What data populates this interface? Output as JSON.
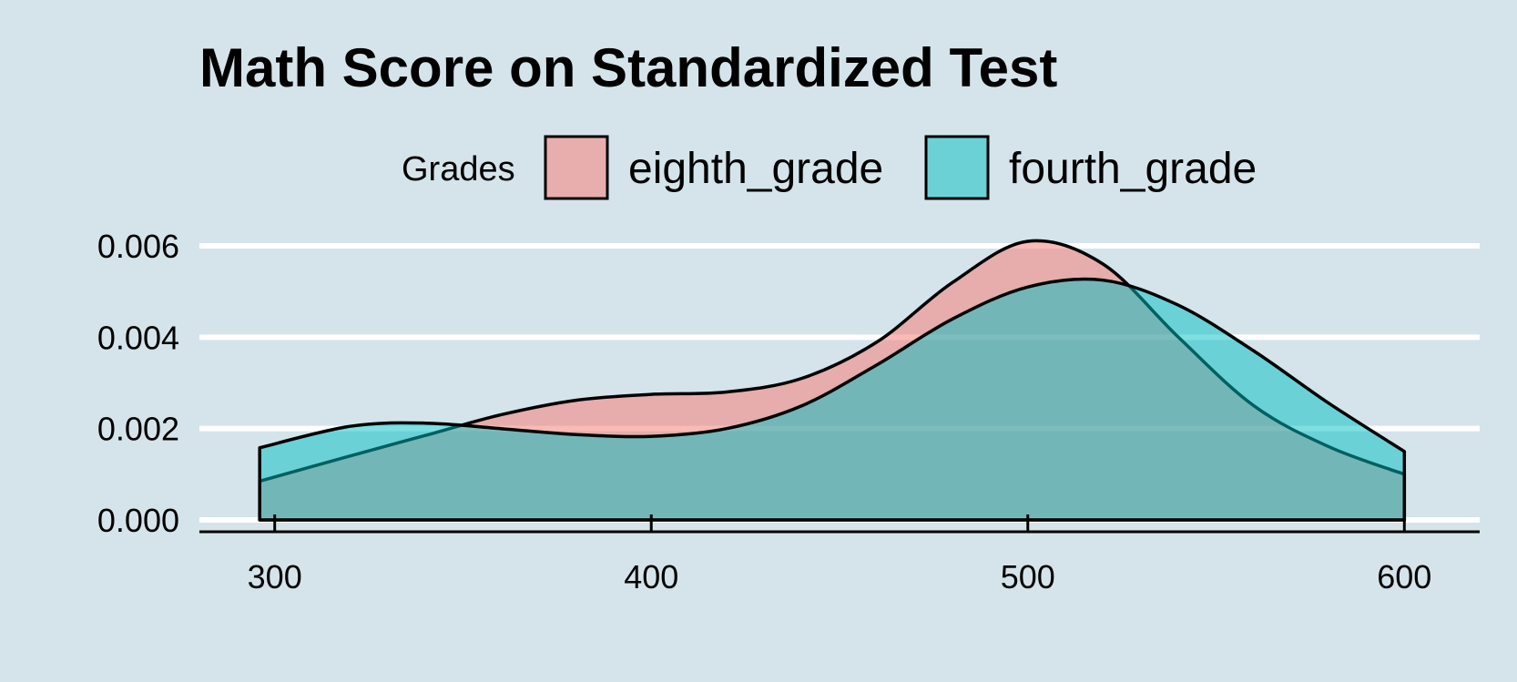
{
  "chart_data": {
    "type": "area",
    "title": "Math Score on Standardized Test",
    "xlabel": "",
    "ylabel": "",
    "legend": {
      "title": "Grades",
      "position": "top"
    },
    "xlim": [
      280,
      620
    ],
    "ylim": [
      0,
      0.0062
    ],
    "x_ticks": [
      300,
      400,
      500,
      600
    ],
    "y_ticks": [
      0.0,
      0.002,
      0.004,
      0.006
    ],
    "x_tick_labels": [
      "300",
      "400",
      "500",
      "600"
    ],
    "y_tick_labels": [
      "0.000",
      "0.002",
      "0.004",
      "0.006"
    ],
    "grid": true,
    "series": [
      {
        "name": "eighth_grade",
        "color": "#f8766d",
        "x": [
          296,
          320,
          340,
          360,
          380,
          400,
          420,
          440,
          460,
          480,
          500,
          520,
          540,
          560,
          580,
          600
        ],
        "y": [
          0.00085,
          0.0014,
          0.00185,
          0.0023,
          0.00262,
          0.00275,
          0.0028,
          0.0031,
          0.0039,
          0.0052,
          0.0061,
          0.0056,
          0.004,
          0.0025,
          0.0016,
          0.001
        ]
      },
      {
        "name": "fourth_grade",
        "color": "#00bfc4",
        "x": [
          296,
          320,
          340,
          360,
          380,
          400,
          420,
          440,
          460,
          480,
          500,
          520,
          540,
          560,
          580,
          600
        ],
        "y": [
          0.00158,
          0.00205,
          0.00212,
          0.002,
          0.00187,
          0.00183,
          0.002,
          0.0025,
          0.0034,
          0.0044,
          0.0051,
          0.00525,
          0.0047,
          0.0037,
          0.00255,
          0.0015
        ]
      }
    ]
  }
}
